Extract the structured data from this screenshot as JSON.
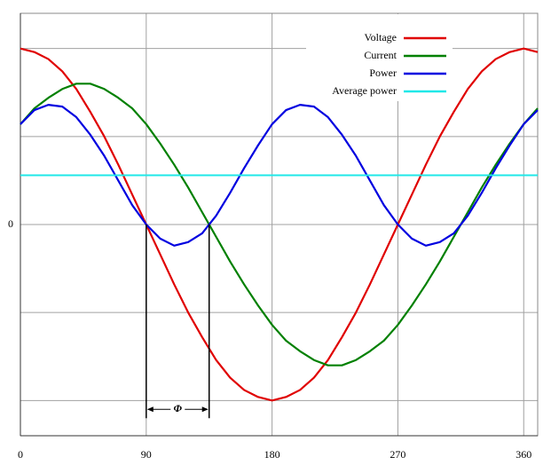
{
  "chart_data": {
    "type": "line",
    "x": [
      0,
      10,
      20,
      30,
      40,
      50,
      60,
      70,
      80,
      90,
      100,
      110,
      120,
      130,
      140,
      150,
      160,
      170,
      180,
      190,
      200,
      210,
      220,
      230,
      240,
      250,
      260,
      270,
      280,
      290,
      300,
      310,
      320,
      330,
      340,
      350,
      360,
      370
    ],
    "series": [
      {
        "name": "Voltage",
        "color": "#e00000",
        "values": [
          1,
          0.98,
          0.94,
          0.87,
          0.77,
          0.64,
          0.5,
          0.34,
          0.17,
          0,
          -0.17,
          -0.34,
          -0.5,
          -0.64,
          -0.77,
          -0.87,
          -0.94,
          -0.98,
          -1,
          -0.98,
          -0.94,
          -0.87,
          -0.77,
          -0.64,
          -0.5,
          -0.34,
          -0.17,
          0,
          0.17,
          0.34,
          0.5,
          0.64,
          0.77,
          0.87,
          0.94,
          0.98,
          1,
          0.98
        ]
      },
      {
        "name": "Current",
        "color": "#008000",
        "values": [
          0.57,
          0.66,
          0.72,
          0.77,
          0.8,
          0.8,
          0.77,
          0.72,
          0.66,
          0.57,
          0.46,
          0.34,
          0.21,
          0.07,
          -0.07,
          -0.21,
          -0.34,
          -0.46,
          -0.57,
          -0.66,
          -0.72,
          -0.77,
          -0.8,
          -0.8,
          -0.77,
          -0.72,
          -0.66,
          -0.57,
          -0.46,
          -0.34,
          -0.21,
          -0.07,
          0.07,
          0.21,
          0.34,
          0.46,
          0.57,
          0.66
        ]
      },
      {
        "name": "Power",
        "color": "#0000e0",
        "values": [
          0.57,
          0.65,
          0.68,
          0.67,
          0.61,
          0.51,
          0.39,
          0.25,
          0.11,
          0,
          -0.08,
          -0.12,
          -0.1,
          -0.05,
          0.05,
          0.18,
          0.32,
          0.45,
          0.57,
          0.65,
          0.68,
          0.67,
          0.61,
          0.51,
          0.39,
          0.25,
          0.11,
          0,
          -0.08,
          -0.12,
          -0.1,
          -0.05,
          0.05,
          0.18,
          0.32,
          0.45,
          0.57,
          0.65
        ]
      },
      {
        "name": "Average power",
        "color": "#20e8e8",
        "level": 0.28
      }
    ],
    "xlim": [
      0,
      370
    ],
    "xticks": [
      0,
      90,
      180,
      270,
      360
    ],
    "ylim": [
      -1.2,
      1.2
    ],
    "yticks": [
      0
    ],
    "ygrid": [
      -1,
      -0.5,
      0.5,
      1
    ],
    "grid": true,
    "legend": "top-right",
    "annotation": {
      "text": "Φ",
      "x1": 90,
      "x2": 135,
      "y": -1.05
    }
  }
}
